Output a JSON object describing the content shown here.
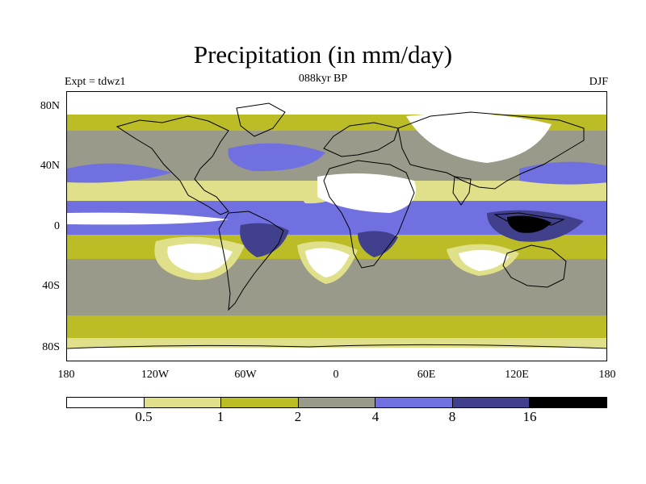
{
  "title": "Precipitation (in mm/day)",
  "labels": {
    "left": "Expt = tdwz1",
    "center": "088kyr BP",
    "right": "DJF"
  },
  "y_ticks": [
    "80N",
    "40N",
    "0",
    "40S",
    "80S"
  ],
  "x_ticks": [
    "180",
    "120W",
    "60W",
    "0",
    "60E",
    "120E",
    "180"
  ],
  "colorbar": {
    "colors": [
      "#ffffff",
      "#e0e08a",
      "#bcbc26",
      "#9a9a8a",
      "#7070e0",
      "#40408c",
      "#000000"
    ],
    "labels": [
      "0.5",
      "1",
      "2",
      "4",
      "8",
      "16"
    ]
  },
  "map": {
    "projection": "cylindrical equidistant",
    "lon_range": [
      -180,
      180
    ],
    "lat_range": [
      -90,
      90
    ],
    "units": "mm/day",
    "palette": {
      "white": "#ffffff",
      "pale_yellow": "#e0e08a",
      "olive": "#bcbc26",
      "gray": "#9a9a8a",
      "blue": "#7070e0",
      "dark_blue": "#40408c",
      "black": "#000000"
    }
  }
}
